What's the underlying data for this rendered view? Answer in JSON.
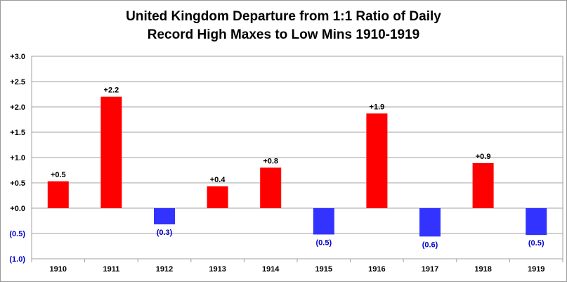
{
  "chart_data": {
    "type": "bar",
    "title_lines": [
      "United Kingdom Departure  from 1:1 Ratio of Daily",
      "Record High Maxes to Low Mins 1910-1919"
    ],
    "categories": [
      "1910",
      "1911",
      "1912",
      "1913",
      "1914",
      "1915",
      "1916",
      "1917",
      "1918",
      "1919"
    ],
    "values": [
      0.53,
      2.2,
      -0.32,
      0.43,
      0.8,
      -0.52,
      1.87,
      -0.56,
      0.89,
      -0.53
    ],
    "data_labels": [
      "+0.5",
      "+2.2",
      "(0.3)",
      "+0.4",
      "+0.8",
      "(0.5)",
      "+1.9",
      "(0.6)",
      "+0.9",
      "(0.5)"
    ],
    "y_ticks": [
      {
        "value": 3.0,
        "label": "+3.0"
      },
      {
        "value": 2.5,
        "label": "+2.5"
      },
      {
        "value": 2.0,
        "label": "+2.0"
      },
      {
        "value": 1.5,
        "label": "+1.5"
      },
      {
        "value": 1.0,
        "label": "+1.0"
      },
      {
        "value": 0.5,
        "label": "+0.5"
      },
      {
        "value": 0.0,
        "label": "+0.0"
      },
      {
        "value": -0.5,
        "label": "(0.5)"
      },
      {
        "value": -1.0,
        "label": "(1.0)"
      }
    ],
    "ylim": [
      -1.0,
      3.0
    ],
    "grid": true,
    "colors": {
      "positive": "#ff0000",
      "negative": "#3333ff",
      "positive_label": "#000000",
      "negative_label": "#0000cc",
      "grid": "#a0a0a0"
    }
  }
}
